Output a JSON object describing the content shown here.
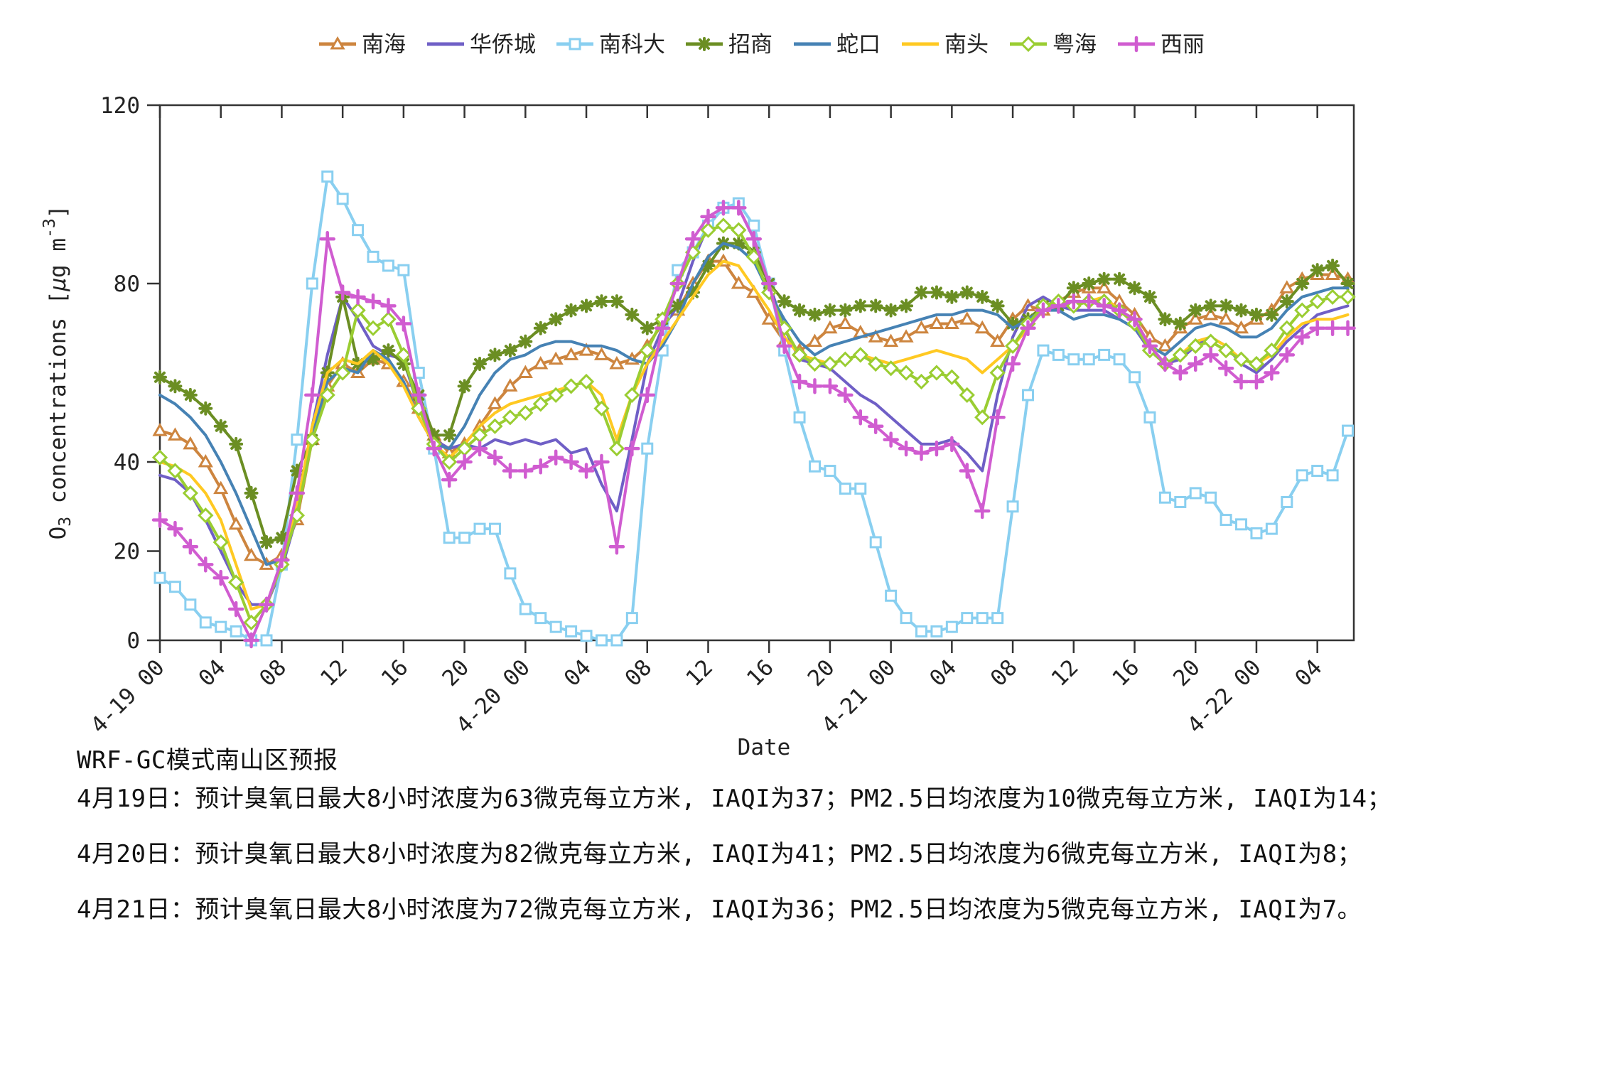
{
  "footer": {
    "title": "WRF-GC模式南山区预报",
    "lines": [
      "4月19日：预计臭氧日最大8小时浓度为63微克每立方米, IAQI为37；PM2.5日均浓度为10微克每立方米, IAQI为14；",
      "4月20日：预计臭氧日最大8小时浓度为82微克每立方米, IAQI为41；PM2.5日均浓度为6微克每立方米, IAQI为8；",
      "4月21日：预计臭氧日最大8小时浓度为72微克每立方米, IAQI为36；PM2.5日均浓度为5微克每立方米, IAQI为7。"
    ]
  },
  "chart_data": {
    "type": "line",
    "xlabel": "Date",
    "ylabel": "O3 concentrations [μg m-3]",
    "ylabel_parts": {
      "o": "O",
      "sub3": "3",
      "mid": " concentrations [",
      "mu": "μ",
      "gm": "g m",
      "sup": "-3",
      "close": "]"
    },
    "ylim": [
      0,
      120
    ],
    "yticks": [
      0,
      20,
      40,
      80,
      120
    ],
    "x_unit": "hourly",
    "x_start": "4-19 00",
    "x_end": "4-22 06",
    "n_points": 79,
    "grid": false,
    "legend_position": "top",
    "xticks": [
      {
        "h": 0,
        "label": "4-19 00"
      },
      {
        "h": 4,
        "label": "04"
      },
      {
        "h": 8,
        "label": "08"
      },
      {
        "h": 12,
        "label": "12"
      },
      {
        "h": 16,
        "label": "16"
      },
      {
        "h": 20,
        "label": "20"
      },
      {
        "h": 24,
        "label": "4-20 00"
      },
      {
        "h": 28,
        "label": "04"
      },
      {
        "h": 32,
        "label": "08"
      },
      {
        "h": 36,
        "label": "12"
      },
      {
        "h": 40,
        "label": "16"
      },
      {
        "h": 44,
        "label": "20"
      },
      {
        "h": 48,
        "label": "4-21 00"
      },
      {
        "h": 52,
        "label": "04"
      },
      {
        "h": 56,
        "label": "08"
      },
      {
        "h": 60,
        "label": "12"
      },
      {
        "h": 64,
        "label": "16"
      },
      {
        "h": 68,
        "label": "20"
      },
      {
        "h": 72,
        "label": "4-22 00"
      },
      {
        "h": 76,
        "label": "04"
      }
    ],
    "series": [
      {
        "id": "nanhai",
        "name": "南海",
        "color": "#CD853F",
        "marker": "triangle",
        "values": [
          47,
          46,
          44,
          40,
          34,
          26,
          19,
          17,
          19,
          27,
          45,
          57,
          62,
          60,
          63,
          62,
          58,
          52,
          46,
          42,
          44,
          48,
          53,
          57,
          60,
          62,
          63,
          64,
          65,
          64,
          62,
          63,
          66,
          71,
          74,
          80,
          85,
          85,
          80,
          78,
          72,
          67,
          65,
          67,
          70,
          71,
          69,
          68,
          67,
          68,
          70,
          71,
          71,
          72,
          70,
          67,
          72,
          75,
          74,
          76,
          78,
          79,
          79,
          76,
          73,
          68,
          66,
          70,
          72,
          73,
          72,
          70,
          72,
          74,
          79,
          81,
          82,
          82,
          81
        ]
      },
      {
        "id": "huaqiaocheng",
        "name": "华侨城",
        "color": "#6F5FC6",
        "marker": "none",
        "values": [
          37,
          36,
          33,
          27,
          20,
          13,
          8,
          8,
          16,
          28,
          48,
          64,
          77,
          72,
          66,
          64,
          63,
          52,
          45,
          43,
          44,
          43,
          45,
          44,
          45,
          44,
          45,
          42,
          43,
          35,
          29,
          45,
          62,
          70,
          75,
          85,
          93,
          97,
          97,
          90,
          80,
          70,
          63,
          62,
          61,
          58,
          55,
          53,
          50,
          47,
          44,
          44,
          45,
          42,
          38,
          55,
          68,
          75,
          77,
          75,
          74,
          74,
          74,
          72,
          70,
          65,
          62,
          63,
          66,
          68,
          66,
          62,
          60,
          63,
          67,
          70,
          73,
          74,
          75
        ]
      },
      {
        "id": "nankeda",
        "name": "南科大",
        "color": "#89CFF0",
        "marker": "square",
        "values": [
          14,
          12,
          8,
          4,
          3,
          2,
          0,
          0,
          17,
          45,
          80,
          104,
          99,
          92,
          86,
          84,
          83,
          60,
          43,
          23,
          23,
          25,
          25,
          15,
          7,
          5,
          3,
          2,
          1,
          0,
          0,
          5,
          43,
          65,
          83,
          87,
          93,
          97,
          98,
          93,
          80,
          65,
          50,
          39,
          38,
          34,
          34,
          22,
          10,
          5,
          2,
          2,
          3,
          5,
          5,
          5,
          30,
          55,
          65,
          64,
          63,
          63,
          64,
          63,
          59,
          50,
          32,
          31,
          33,
          32,
          27,
          26,
          24,
          25,
          31,
          37,
          38,
          37,
          47
        ]
      },
      {
        "id": "zhaoshang",
        "name": "招商",
        "color": "#6B8E23",
        "marker": "asterisk",
        "values": [
          59,
          57,
          55,
          52,
          48,
          44,
          33,
          22,
          23,
          38,
          45,
          60,
          77,
          62,
          63,
          65,
          62,
          55,
          46,
          46,
          57,
          62,
          64,
          65,
          67,
          70,
          72,
          74,
          75,
          76,
          76,
          73,
          70,
          72,
          75,
          78,
          84,
          89,
          89,
          87,
          80,
          76,
          74,
          73,
          74,
          74,
          75,
          75,
          74,
          75,
          78,
          78,
          77,
          78,
          77,
          75,
          71,
          72,
          75,
          75,
          79,
          80,
          81,
          81,
          79,
          77,
          72,
          71,
          74,
          75,
          75,
          74,
          73,
          73,
          76,
          80,
          83,
          84,
          80
        ]
      },
      {
        "id": "shekou",
        "name": "蛇口",
        "color": "#4682B4",
        "marker": "none",
        "values": [
          55,
          53,
          50,
          46,
          40,
          33,
          25,
          17,
          18,
          30,
          46,
          58,
          61,
          60,
          65,
          63,
          58,
          50,
          44,
          43,
          48,
          55,
          60,
          63,
          64,
          66,
          67,
          67,
          66,
          66,
          65,
          63,
          62,
          66,
          72,
          80,
          86,
          89,
          88,
          85,
          78,
          72,
          67,
          64,
          66,
          67,
          68,
          69,
          70,
          71,
          72,
          73,
          73,
          74,
          74,
          73,
          70,
          72,
          74,
          74,
          72,
          73,
          73,
          72,
          70,
          66,
          64,
          67,
          70,
          71,
          70,
          68,
          68,
          70,
          74,
          77,
          78,
          79,
          79
        ]
      },
      {
        "id": "nantou",
        "name": "南头",
        "color": "#FFC922",
        "marker": "none",
        "values": [
          40,
          39,
          37,
          33,
          27,
          17,
          7,
          8,
          17,
          30,
          48,
          60,
          63,
          62,
          65,
          62,
          57,
          50,
          44,
          41,
          44,
          48,
          51,
          53,
          54,
          55,
          56,
          57,
          58,
          55,
          45,
          55,
          62,
          67,
          72,
          77,
          82,
          85,
          84,
          79,
          74,
          68,
          64,
          63,
          62,
          63,
          64,
          63,
          62,
          63,
          64,
          65,
          64,
          63,
          60,
          63,
          66,
          70,
          74,
          76,
          75,
          76,
          77,
          74,
          72,
          66,
          62,
          64,
          67,
          68,
          66,
          63,
          62,
          64,
          68,
          71,
          72,
          72,
          73
        ]
      },
      {
        "id": "yuehai",
        "name": "粤海",
        "color": "#9ACD32",
        "marker": "diamond",
        "values": [
          41,
          38,
          33,
          28,
          22,
          13,
          4,
          8,
          17,
          28,
          45,
          55,
          60,
          74,
          70,
          72,
          64,
          52,
          44,
          40,
          43,
          46,
          48,
          50,
          51,
          53,
          55,
          57,
          58,
          52,
          43,
          55,
          65,
          72,
          80,
          87,
          92,
          93,
          92,
          86,
          78,
          70,
          64,
          62,
          62,
          63,
          64,
          62,
          61,
          60,
          58,
          60,
          59,
          55,
          50,
          60,
          66,
          71,
          75,
          76,
          75,
          76,
          76,
          74,
          71,
          65,
          62,
          64,
          66,
          67,
          65,
          63,
          62,
          65,
          70,
          74,
          76,
          77,
          77
        ]
      },
      {
        "id": "xili",
        "name": "西丽",
        "color": "#D05CD0",
        "marker": "plus",
        "values": [
          27,
          25,
          21,
          17,
          14,
          7,
          0,
          8,
          18,
          33,
          55,
          90,
          78,
          77,
          76,
          75,
          71,
          55,
          43,
          36,
          40,
          43,
          41,
          38,
          38,
          39,
          41,
          40,
          38,
          40,
          21,
          43,
          55,
          70,
          80,
          90,
          95,
          97,
          97,
          90,
          80,
          66,
          58,
          57,
          57,
          55,
          50,
          48,
          45,
          43,
          42,
          43,
          44,
          38,
          29,
          50,
          62,
          70,
          74,
          75,
          76,
          76,
          75,
          74,
          72,
          66,
          62,
          60,
          62,
          64,
          61,
          58,
          58,
          60,
          64,
          68,
          70,
          70,
          70
        ]
      }
    ]
  }
}
